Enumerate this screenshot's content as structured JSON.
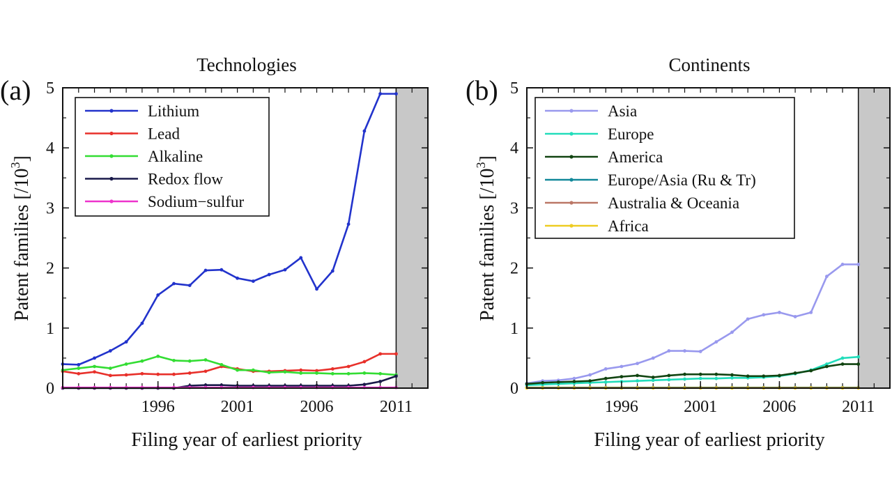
{
  "chart_data": [
    {
      "type": "line",
      "panel_label": "(a)",
      "title": "Technologies",
      "xlabel": "Filing year of earliest priority",
      "ylabel": "Patent families [/10",
      "ylabel_sup": "3",
      "ylabel_close": "]",
      "xlim": [
        1990,
        2013
      ],
      "ylim": [
        0,
        5
      ],
      "shaded_from": 2011,
      "x_ticks": [
        1996,
        2001,
        2006,
        2011
      ],
      "y_ticks": [
        0,
        1,
        2,
        3,
        4,
        5
      ],
      "legend_position": "top-left",
      "x": [
        1990,
        1991,
        1992,
        1993,
        1994,
        1995,
        1996,
        1997,
        1998,
        1999,
        2000,
        2001,
        2002,
        2003,
        2004,
        2005,
        2006,
        2007,
        2008,
        2009,
        2010,
        2011
      ],
      "series": [
        {
          "name": "Lithium",
          "color": "#2233cc",
          "values": [
            0.4,
            0.39,
            0.5,
            0.62,
            0.77,
            1.08,
            1.55,
            1.74,
            1.71,
            1.96,
            1.97,
            1.83,
            1.78,
            1.89,
            1.97,
            2.17,
            1.65,
            1.95,
            2.73,
            4.28,
            4.9,
            4.9
          ]
        },
        {
          "name": "Lead",
          "color": "#e8302a",
          "values": [
            0.28,
            0.24,
            0.27,
            0.21,
            0.22,
            0.24,
            0.23,
            0.23,
            0.25,
            0.28,
            0.36,
            0.32,
            0.28,
            0.28,
            0.29,
            0.3,
            0.29,
            0.32,
            0.36,
            0.44,
            0.57,
            0.57
          ]
        },
        {
          "name": "Alkaline",
          "color": "#33dd33",
          "values": [
            0.3,
            0.33,
            0.36,
            0.33,
            0.4,
            0.45,
            0.53,
            0.46,
            0.45,
            0.47,
            0.39,
            0.3,
            0.3,
            0.26,
            0.27,
            0.25,
            0.25,
            0.24,
            0.24,
            0.25,
            0.24,
            0.22
          ]
        },
        {
          "name": "Redox flow",
          "color": "#1a1a4a",
          "values": [
            0.0,
            0.0,
            0.0,
            0.0,
            0.0,
            0.0,
            0.0,
            0.0,
            0.04,
            0.05,
            0.05,
            0.04,
            0.04,
            0.04,
            0.04,
            0.04,
            0.04,
            0.04,
            0.04,
            0.06,
            0.11,
            0.2
          ]
        },
        {
          "name": "Sodium−sulfur",
          "color": "#ee33cc",
          "values": [
            0.01,
            0.01,
            0.01,
            0.01,
            0.01,
            0.01,
            0.01,
            0.01,
            0.01,
            0.01,
            0.01,
            0.01,
            0.01,
            0.01,
            0.01,
            0.01,
            0.01,
            0.01,
            0.01,
            0.01,
            0.01,
            0.01
          ]
        }
      ]
    },
    {
      "type": "line",
      "panel_label": "(b)",
      "title": "Continents",
      "xlabel": "Filing year of earliest priority",
      "ylabel": "Patent families [/10",
      "ylabel_sup": "3",
      "ylabel_close": "]",
      "xlim": [
        1990,
        2013
      ],
      "ylim": [
        0,
        5
      ],
      "shaded_from": 2011,
      "x_ticks": [
        1996,
        2001,
        2006,
        2011
      ],
      "y_ticks": [
        0,
        1,
        2,
        3,
        4,
        5
      ],
      "legend_position": "top-left",
      "x": [
        1990,
        1991,
        1992,
        1993,
        1994,
        1995,
        1996,
        1997,
        1998,
        1999,
        2000,
        2001,
        2002,
        2003,
        2004,
        2005,
        2006,
        2007,
        2008,
        2009,
        2010,
        2011
      ],
      "series": [
        {
          "name": "Asia",
          "color": "#9999ee",
          "values": [
            0.08,
            0.12,
            0.13,
            0.16,
            0.22,
            0.32,
            0.36,
            0.41,
            0.5,
            0.62,
            0.62,
            0.61,
            0.77,
            0.93,
            1.15,
            1.22,
            1.26,
            1.19,
            1.26,
            1.86,
            2.06,
            2.06
          ]
        },
        {
          "name": "Europe",
          "color": "#22ddbb",
          "values": [
            0.05,
            0.06,
            0.07,
            0.08,
            0.09,
            0.1,
            0.11,
            0.12,
            0.13,
            0.14,
            0.15,
            0.16,
            0.16,
            0.17,
            0.17,
            0.18,
            0.2,
            0.24,
            0.3,
            0.4,
            0.5,
            0.52
          ]
        },
        {
          "name": "America",
          "color": "#114411",
          "values": [
            0.07,
            0.09,
            0.1,
            0.11,
            0.12,
            0.16,
            0.19,
            0.21,
            0.18,
            0.21,
            0.23,
            0.23,
            0.23,
            0.22,
            0.2,
            0.2,
            0.21,
            0.25,
            0.29,
            0.36,
            0.4,
            0.4
          ]
        },
        {
          "name": "Europe/Asia (Ru & Tr)",
          "color": "#118899",
          "values": [
            0.01,
            0.01,
            0.01,
            0.01,
            0.01,
            0.01,
            0.01,
            0.01,
            0.01,
            0.01,
            0.01,
            0.01,
            0.01,
            0.01,
            0.01,
            0.01,
            0.01,
            0.01,
            0.01,
            0.01,
            0.01,
            0.01
          ]
        },
        {
          "name": "Australia & Oceania",
          "color": "#bb7766",
          "values": [
            0.005,
            0.005,
            0.005,
            0.005,
            0.005,
            0.005,
            0.005,
            0.005,
            0.005,
            0.005,
            0.005,
            0.005,
            0.005,
            0.005,
            0.005,
            0.005,
            0.005,
            0.005,
            0.005,
            0.005,
            0.005,
            0.005
          ]
        },
        {
          "name": "Africa",
          "color": "#eecc22",
          "values": [
            0.002,
            0.002,
            0.002,
            0.002,
            0.002,
            0.002,
            0.002,
            0.002,
            0.002,
            0.002,
            0.002,
            0.002,
            0.002,
            0.002,
            0.002,
            0.002,
            0.002,
            0.002,
            0.002,
            0.002,
            0.002,
            0.002
          ]
        }
      ]
    }
  ]
}
